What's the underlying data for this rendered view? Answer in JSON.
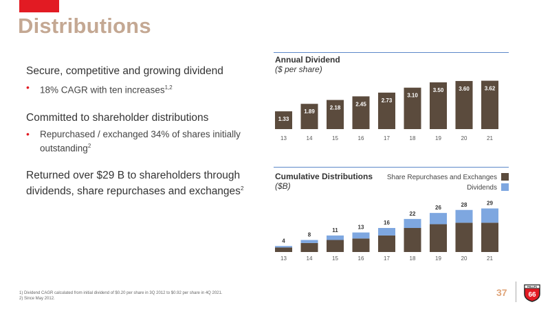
{
  "header": {
    "title": "Distributions"
  },
  "bullets": [
    {
      "main": "Secure, competitive and growing dividend",
      "sub": "18% CAGR with ten increases",
      "sub_sup": "1,2"
    },
    {
      "main": "Committed to shareholder distributions",
      "sub": "Repurchased / exchanged 34% of shares initially outstanding",
      "sub_sup": "2"
    },
    {
      "main": "Returned over $29 B to shareholders through dividends, share repurchases and exchanges",
      "main_sup": "2"
    }
  ],
  "colors": {
    "accent_red": "#e21b23",
    "title_tan": "#c4a893",
    "bar_dark": "#5b4b3d",
    "bar_blue": "#7ea7e0",
    "rule_blue": "#5b87c8"
  },
  "chart_data": [
    {
      "type": "bar",
      "title": "Annual Dividend",
      "subtitle": "($ per share)",
      "categories": [
        "13",
        "14",
        "15",
        "16",
        "17",
        "18",
        "19",
        "20",
        "21"
      ],
      "values": [
        1.33,
        1.89,
        2.18,
        2.45,
        2.73,
        3.1,
        3.5,
        3.6,
        3.62
      ],
      "labels": [
        "1.33",
        "1.89",
        "2.18",
        "2.45",
        "2.73",
        "3.10",
        "3.50",
        "3.60",
        "3.62"
      ],
      "ylim": [
        0,
        3.7
      ]
    },
    {
      "type": "bar",
      "stacked": true,
      "title": "Cumulative Distributions",
      "subtitle": "($B)",
      "categories": [
        "13",
        "14",
        "15",
        "16",
        "17",
        "18",
        "19",
        "20",
        "21"
      ],
      "totals": [
        4,
        8,
        11,
        13,
        16,
        22,
        26,
        28,
        29
      ],
      "total_labels": [
        "4",
        "8",
        "11",
        "13",
        "16",
        "22",
        "26",
        "28",
        "29"
      ],
      "series": [
        {
          "name": "Share Repurchases and Exchanges",
          "values": [
            3,
            6,
            8,
            9,
            11,
            16,
            18.5,
            19.5,
            19.5
          ]
        },
        {
          "name": "Dividends",
          "values": [
            1,
            2,
            3,
            4,
            5,
            6,
            7.5,
            8.5,
            9.5
          ]
        }
      ],
      "ylim": [
        0,
        32
      ],
      "legend_position": "top-right"
    }
  ],
  "footer": {
    "footnote1": "1) Dividend CAGR calculated from initial dividend of $0.20 per share in 3Q 2012 to $0.92 per share in 4Q 2021.",
    "footnote2": "2) Since May 2012.",
    "page_number": "37",
    "logo_text": "66",
    "logo_top_text": "PHILLIPS"
  }
}
